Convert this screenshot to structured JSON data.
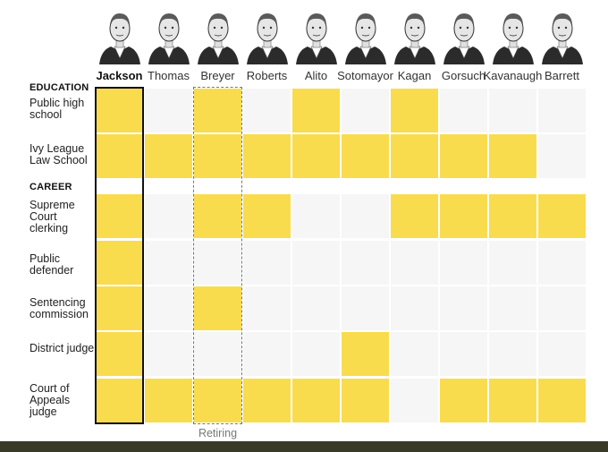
{
  "chart_data": {
    "type": "table",
    "justices": [
      "Jackson",
      "Thomas",
      "Breyer",
      "Roberts",
      "Alito",
      "Sotomayor",
      "Kagan",
      "Gorsuch",
      "Kavanaugh",
      "Barrett"
    ],
    "sections": [
      {
        "label": "EDUCATION",
        "rows": [
          {
            "label": "Public high school",
            "values": [
              1,
              0,
              1,
              0,
              1,
              0,
              1,
              0,
              0,
              0
            ]
          },
          {
            "label": "Ivy League Law School",
            "values": [
              1,
              1,
              1,
              1,
              1,
              1,
              1,
              1,
              1,
              0
            ]
          }
        ]
      },
      {
        "label": "CAREER",
        "rows": [
          {
            "label": "Supreme Court clerking",
            "values": [
              1,
              0,
              1,
              1,
              0,
              0,
              1,
              1,
              1,
              1
            ]
          },
          {
            "label": "Public defender",
            "values": [
              1,
              0,
              0,
              0,
              0,
              0,
              0,
              0,
              0,
              0
            ]
          },
          {
            "label": "Sentencing commission",
            "values": [
              1,
              0,
              1,
              0,
              0,
              0,
              0,
              0,
              0,
              0
            ]
          },
          {
            "label": "District judge",
            "values": [
              1,
              0,
              0,
              0,
              0,
              1,
              0,
              0,
              0,
              0
            ]
          },
          {
            "label": "Court of Appeals judge",
            "values": [
              1,
              1,
              1,
              1,
              1,
              1,
              0,
              1,
              1,
              1
            ]
          }
        ]
      }
    ],
    "highlighted_justice": "Jackson",
    "retiring_justice": "Breyer",
    "retiring_label": "Retiring",
    "colors": {
      "yes": "#f9dc4e",
      "no": "#f6f6f6",
      "highlight_border": "#111111",
      "retiring_border": "#777777"
    }
  }
}
